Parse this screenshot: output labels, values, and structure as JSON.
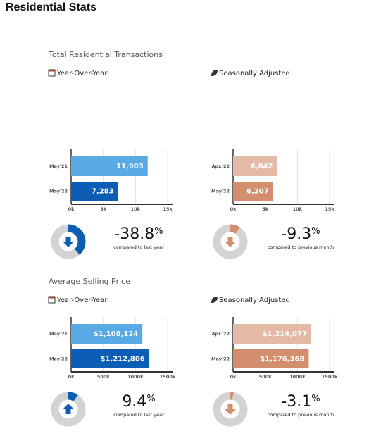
{
  "title": "Residential Stats",
  "sections": [
    {
      "title": "Total Residential Transactions"
    },
    {
      "title": "Average Selling Price"
    }
  ],
  "chart_data": [
    {
      "type": "bar",
      "orientation": "horizontal",
      "label": "Year-Over-Year",
      "categories": [
        "May'21",
        "May'22"
      ],
      "values": [
        11903,
        7283
      ],
      "value_labels": [
        "11,903",
        "7,283"
      ],
      "colors": [
        "#58a9e4",
        "#0e5db4"
      ],
      "xlim": [
        0,
        15000
      ],
      "xticks": [
        {
          "value": 0,
          "label": "0k"
        },
        {
          "value": 5000,
          "label": "5k"
        },
        {
          "value": 10000,
          "label": "10k"
        },
        {
          "value": 15000,
          "label": "15k"
        }
      ],
      "grid": true,
      "change": {
        "value": -38.8,
        "unit": "%",
        "caption": "compared to last year"
      }
    },
    {
      "type": "bar",
      "orientation": "horizontal",
      "label": "Seasonally Adjusted",
      "categories": [
        "Apr.'22",
        "May'22"
      ],
      "values": [
        6842,
        6207
      ],
      "value_labels": [
        "6,842",
        "6,207"
      ],
      "colors": [
        "#e4b9a5",
        "#d38f6d"
      ],
      "xlim": [
        0,
        15000
      ],
      "xticks": [
        {
          "value": 0,
          "label": "0k"
        },
        {
          "value": 5000,
          "label": "5k"
        },
        {
          "value": 10000,
          "label": "10k"
        },
        {
          "value": 15000,
          "label": "15k"
        }
      ],
      "grid": true,
      "change": {
        "value": -9.3,
        "unit": "%",
        "caption": "compared to previous month"
      }
    },
    {
      "type": "bar",
      "orientation": "horizontal",
      "label": "Year-Over-Year",
      "categories": [
        "May'21",
        "May'22"
      ],
      "values": [
        1108124,
        1212806
      ],
      "value_labels": [
        "$1,108,124",
        "$1,212,806"
      ],
      "colors": [
        "#58a9e4",
        "#0e5db4"
      ],
      "xlim": [
        0,
        1500000
      ],
      "xticks": [
        {
          "value": 0,
          "label": "0k"
        },
        {
          "value": 500000,
          "label": "500k"
        },
        {
          "value": 1000000,
          "label": "1000k"
        },
        {
          "value": 1500000,
          "label": "1500k"
        }
      ],
      "grid": true,
      "change": {
        "value": 9.4,
        "unit": "%",
        "caption": "compared to last year"
      }
    },
    {
      "type": "bar",
      "orientation": "horizontal",
      "label": "Seasonally Adjusted",
      "categories": [
        "Apr.'22",
        "May'22"
      ],
      "values": [
        1214077,
        1176368
      ],
      "value_labels": [
        "$1,214,077",
        "$1,176,368"
      ],
      "colors": [
        "#e4b9a5",
        "#d38f6d"
      ],
      "xlim": [
        0,
        1500000
      ],
      "xticks": [
        {
          "value": 0,
          "label": "0k"
        },
        {
          "value": 500000,
          "label": "500k"
        },
        {
          "value": 1000000,
          "label": "1000k"
        },
        {
          "value": 1500000,
          "label": "1500k"
        }
      ],
      "grid": true,
      "change": {
        "value": -3.1,
        "unit": "%",
        "caption": "compared to previous month"
      }
    }
  ]
}
